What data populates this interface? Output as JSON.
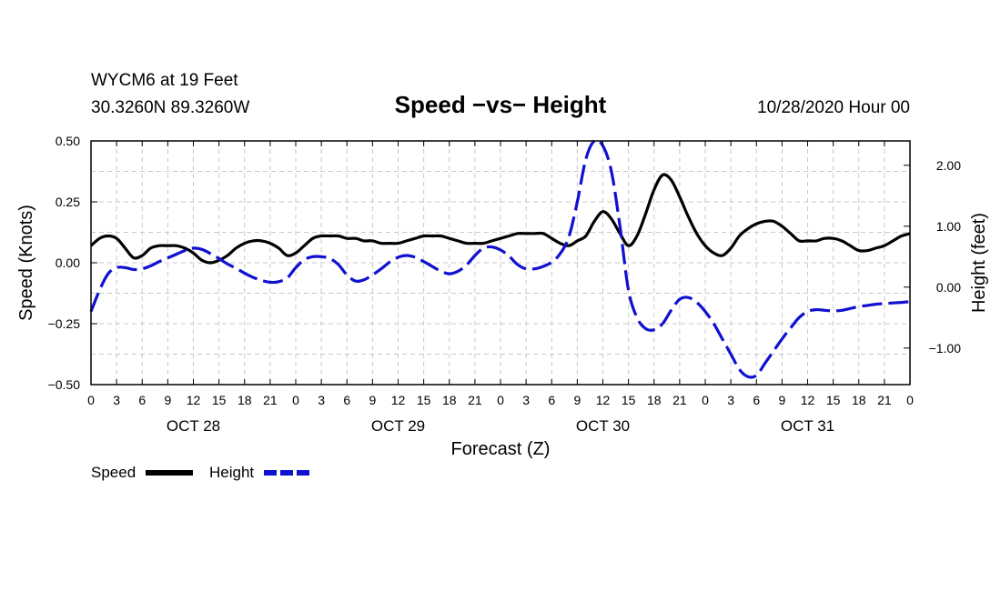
{
  "header": {
    "station": "WYCM6 at 19 Feet",
    "location": "30.3260N 89.3260W",
    "title": "Speed −vs− Height",
    "datetime": "10/28/2020 Hour 00"
  },
  "legend": {
    "speed_label": "Speed",
    "height_label": "Height"
  },
  "colors": {
    "speed": "#000000",
    "height": "#1010d0",
    "grid": "#c8c8c8"
  },
  "chart_data": {
    "type": "line",
    "title": "Speed −vs− Height",
    "xlabel": "Forecast (Z)",
    "ylabel": "Speed (Knots)",
    "y2label": "Height (feet)",
    "xlim": [
      0,
      96
    ],
    "ylim": [
      -0.5,
      0.5
    ],
    "y2lim": [
      -1.6,
      2.4
    ],
    "yticks": [
      {
        "value": 0.5,
        "label": "0.50"
      },
      {
        "value": 0.25,
        "label": "0.25"
      },
      {
        "value": 0,
        "label": "0.00"
      },
      {
        "value": -0.25,
        "label": "−0.25"
      },
      {
        "value": -0.5,
        "label": "−0.50"
      }
    ],
    "y2ticks": [
      {
        "value": 2,
        "label": "2.00"
      },
      {
        "value": 1,
        "label": "1.00"
      },
      {
        "value": 0,
        "label": "0.00"
      },
      {
        "value": -1,
        "label": "−1.00"
      }
    ],
    "xticks": [
      "0",
      "3",
      "6",
      "9",
      "12",
      "15",
      "18",
      "21",
      "0",
      "3",
      "6",
      "9",
      "12",
      "15",
      "18",
      "21",
      "0",
      "3",
      "6",
      "9",
      "12",
      "15",
      "18",
      "21",
      "0",
      "3",
      "6",
      "9",
      "12",
      "15",
      "18",
      "21",
      "0"
    ],
    "day_labels": [
      "OCT 28",
      "OCT 29",
      "OCT 30",
      "OCT 31"
    ],
    "series": [
      {
        "name": "Speed",
        "axis": "left",
        "style": "solid",
        "x": [
          0,
          1,
          2,
          3,
          4,
          5,
          6,
          7,
          8,
          9,
          10,
          11,
          12,
          13,
          14,
          15,
          16,
          17,
          18,
          19,
          20,
          21,
          22,
          23,
          24,
          25,
          26,
          27,
          28,
          29,
          30,
          31,
          32,
          33,
          34,
          35,
          36,
          37,
          38,
          39,
          40,
          41,
          42,
          43,
          44,
          45,
          46,
          47,
          48,
          49,
          50,
          51,
          52,
          53,
          54,
          55,
          56,
          57,
          58,
          59,
          60,
          61,
          62,
          63,
          64,
          65,
          66,
          67,
          68,
          69,
          70,
          71,
          72,
          73,
          74,
          75,
          76,
          77,
          78,
          79,
          80,
          81,
          82,
          83,
          84,
          85,
          86,
          87,
          88,
          89,
          90,
          91,
          92,
          93,
          94,
          95,
          96
        ],
        "values": [
          0.07,
          0.1,
          0.11,
          0.1,
          0.06,
          0.02,
          0.03,
          0.06,
          0.07,
          0.07,
          0.07,
          0.06,
          0.04,
          0.01,
          0.0,
          0.01,
          0.03,
          0.06,
          0.08,
          0.09,
          0.09,
          0.08,
          0.06,
          0.03,
          0.04,
          0.07,
          0.1,
          0.11,
          0.11,
          0.11,
          0.1,
          0.1,
          0.09,
          0.09,
          0.08,
          0.08,
          0.08,
          0.09,
          0.1,
          0.11,
          0.11,
          0.11,
          0.1,
          0.09,
          0.08,
          0.08,
          0.08,
          0.09,
          0.1,
          0.11,
          0.12,
          0.12,
          0.12,
          0.12,
          0.1,
          0.08,
          0.07,
          0.09,
          0.11,
          0.17,
          0.21,
          0.18,
          0.12,
          0.07,
          0.11,
          0.2,
          0.3,
          0.36,
          0.34,
          0.27,
          0.19,
          0.12,
          0.07,
          0.04,
          0.03,
          0.06,
          0.11,
          0.14,
          0.16,
          0.17,
          0.17,
          0.15,
          0.12,
          0.09,
          0.09,
          0.09,
          0.1,
          0.1,
          0.09,
          0.07,
          0.05,
          0.05,
          0.06,
          0.07,
          0.09,
          0.11,
          0.12
        ]
      },
      {
        "name": "Height",
        "axis": "right",
        "style": "dashed",
        "x": [
          0,
          1,
          2,
          3,
          4,
          5,
          6,
          7,
          8,
          9,
          10,
          11,
          12,
          13,
          14,
          15,
          16,
          17,
          18,
          19,
          20,
          21,
          22,
          23,
          24,
          25,
          26,
          27,
          28,
          29,
          30,
          31,
          32,
          33,
          34,
          35,
          36,
          37,
          38,
          39,
          40,
          41,
          42,
          43,
          44,
          45,
          46,
          47,
          48,
          49,
          50,
          51,
          52,
          53,
          54,
          55,
          56,
          57,
          58,
          59,
          60,
          61,
          62,
          63,
          64,
          65,
          66,
          67,
          68,
          69,
          70,
          71,
          72,
          73,
          74,
          75,
          76,
          77,
          78,
          79,
          80,
          81,
          82,
          83,
          84,
          85,
          86,
          87,
          88,
          89,
          90,
          91,
          92,
          93,
          94,
          95,
          96
        ],
        "values": [
          -0.4,
          -0.05,
          0.22,
          0.32,
          0.32,
          0.29,
          0.3,
          0.35,
          0.42,
          0.48,
          0.54,
          0.6,
          0.64,
          0.62,
          0.55,
          0.47,
          0.38,
          0.31,
          0.23,
          0.16,
          0.11,
          0.08,
          0.09,
          0.15,
          0.32,
          0.45,
          0.5,
          0.5,
          0.47,
          0.37,
          0.2,
          0.1,
          0.12,
          0.2,
          0.3,
          0.41,
          0.49,
          0.52,
          0.49,
          0.42,
          0.34,
          0.26,
          0.22,
          0.26,
          0.36,
          0.52,
          0.64,
          0.66,
          0.61,
          0.51,
          0.37,
          0.3,
          0.3,
          0.34,
          0.41,
          0.55,
          0.82,
          1.4,
          2.1,
          2.4,
          2.32,
          1.9,
          1.0,
          -0.05,
          -0.5,
          -0.68,
          -0.7,
          -0.6,
          -0.38,
          -0.2,
          -0.17,
          -0.25,
          -0.4,
          -0.6,
          -0.85,
          -1.1,
          -1.35,
          -1.47,
          -1.45,
          -1.25,
          -1.05,
          -0.85,
          -0.67,
          -0.5,
          -0.4,
          -0.37,
          -0.38,
          -0.39,
          -0.38,
          -0.35,
          -0.32,
          -0.3,
          -0.28,
          -0.27,
          -0.26,
          -0.25,
          -0.24
        ]
      }
    ]
  }
}
